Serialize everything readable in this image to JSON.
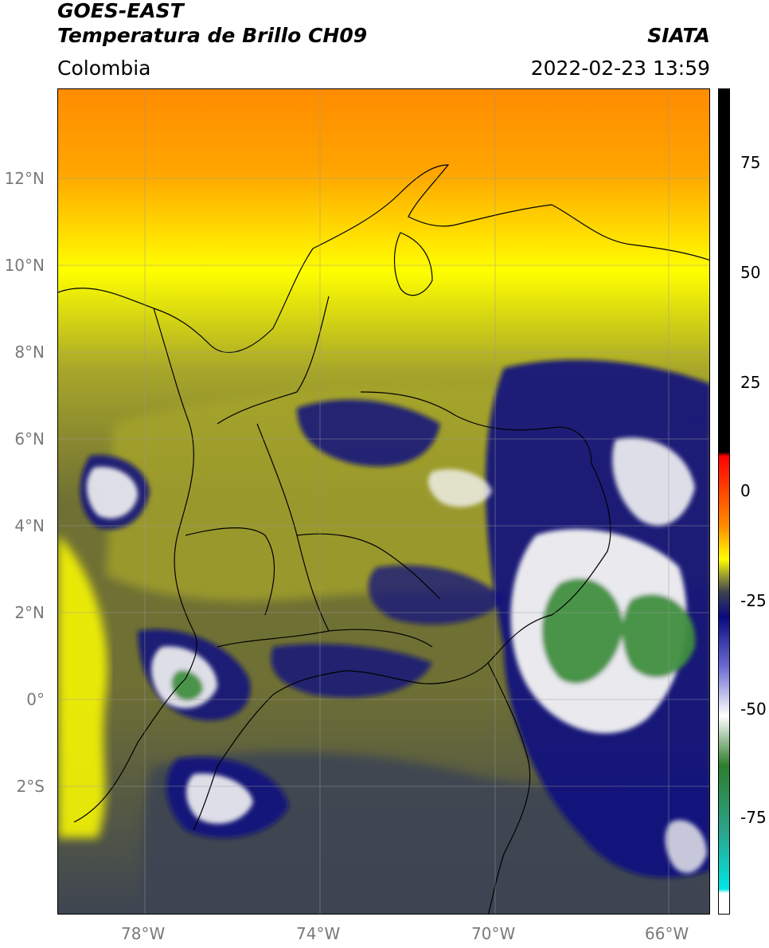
{
  "header": {
    "satellite": "GOES-EAST",
    "product": "Temperatura de Brillo CH09",
    "region": "Colombia",
    "source": "SIATA",
    "timestamp": "2022-02-23 13:59"
  },
  "map": {
    "lat_labels": [
      "12°N",
      "10°N",
      "8°N",
      "6°N",
      "4°N",
      "2°N",
      "0°",
      "2°S"
    ],
    "lon_labels": [
      "78°W",
      "74°W",
      "70°W",
      "66°W"
    ],
    "colors": {
      "warm_top": "#ff8c00",
      "orange": "#ffa500",
      "yellow": "#ffff00",
      "olive": "#a7a62a",
      "dark_olive": "#6f7034",
      "slate": "#3e4552",
      "navy": "#101080",
      "white_cloud": "#f4f4f4",
      "green_cloud": "#3f8f3f",
      "teal": "#3aa58a",
      "coastline": "#000000",
      "grid": "#9a9a9a"
    }
  },
  "colorbar": {
    "labels": [
      "75",
      "50",
      "25",
      "0",
      "-25",
      "-50",
      "-75"
    ],
    "stops": [
      {
        "color": "#000000"
      },
      {
        "color": "#000000"
      },
      {
        "color": "#ff0000"
      },
      {
        "color": "#ff8c00"
      },
      {
        "color": "#ffff00"
      },
      {
        "color": "#9c9c30"
      },
      {
        "color": "#3c4150"
      },
      {
        "color": "#0a0a80"
      },
      {
        "color": "#6a6ad0"
      },
      {
        "color": "#ffffff"
      },
      {
        "color": "#2e7d2e"
      },
      {
        "color": "#2aa58a"
      },
      {
        "color": "#00e5e5"
      },
      {
        "color": "#ffffff"
      }
    ]
  }
}
